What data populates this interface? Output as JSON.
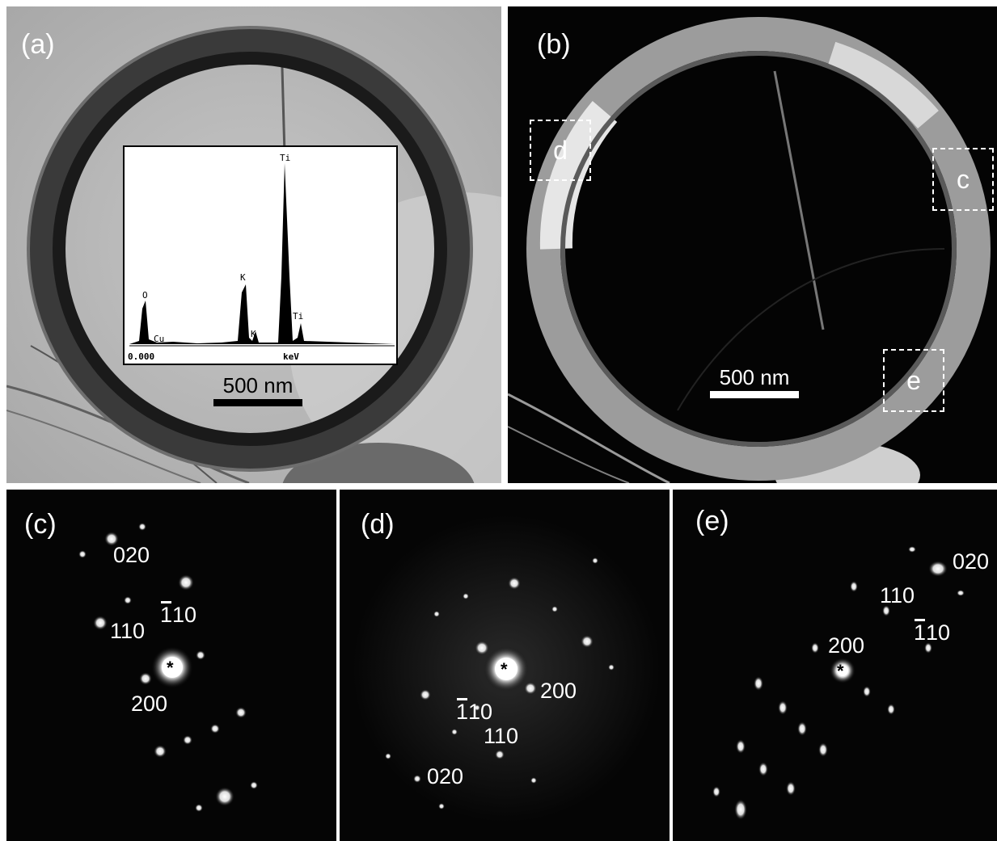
{
  "panels": {
    "a": {
      "label": "(a)",
      "scale_bar": "500 nm"
    },
    "b": {
      "label": "(b)",
      "scale_bar": "500 nm",
      "regions": {
        "d": "d",
        "c": "c",
        "e": "e"
      }
    },
    "c": {
      "label": "(c)",
      "indices": {
        "i020": "020",
        "i110": "110",
        "i200": "200",
        "ibar110": "110"
      }
    },
    "d": {
      "label": "(d)",
      "indices": {
        "i200": "200",
        "ibar110": "110",
        "i110": "110",
        "i020": "020"
      }
    },
    "e": {
      "label": "(e)",
      "indices": {
        "i020": "020",
        "i110": "110",
        "i200": "200",
        "ibar110": "110"
      }
    }
  },
  "center_marker": "*",
  "eds_inset": {
    "peaks": {
      "o": "O",
      "cu": "Cu",
      "k1": "K",
      "k2": "K",
      "ti1": "Ti",
      "ti2": "Ti"
    },
    "axis": {
      "start": "0.000",
      "unit": "keV"
    }
  }
}
